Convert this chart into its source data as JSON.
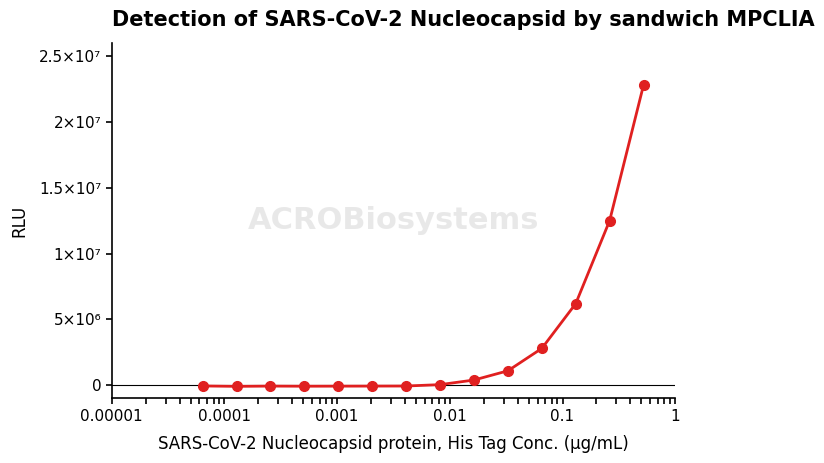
{
  "title": "Detection of SARS-CoV-2 Nucleocapsid by sandwich MPCLIA",
  "xlabel": "SARS-CoV-2 Nucleocapsid protein, His Tag Conc. (μg/mL)",
  "ylabel": "RLU",
  "x_data": [
    6.4e-05,
    0.000128,
    0.000256,
    0.000512,
    0.001024,
    0.002048,
    0.004096,
    0.008192,
    0.016384,
    0.032768,
    0.065536,
    0.131072,
    0.262144,
    0.524288
  ],
  "y_data": [
    -50000,
    -80000,
    -60000,
    -70000,
    -65000,
    -60000,
    -55000,
    50000,
    400000,
    1100000,
    2800000,
    6200000,
    12500000,
    22800000
  ],
  "line_color": "#e02020",
  "marker_color": "#e02020",
  "marker_size": 7,
  "line_width": 2,
  "xlim_log": [
    -5,
    0
  ],
  "ylim": [
    -1000000,
    26000000
  ],
  "yticks": [
    0,
    5000000,
    10000000,
    15000000,
    20000000,
    25000000
  ],
  "ytick_labels": [
    "0",
    "5×10⁶",
    "1×10⁷",
    "1.5×10⁷",
    "2×10⁷",
    "2.5×10⁷"
  ],
  "title_fontsize": 15,
  "axis_label_fontsize": 12,
  "tick_fontsize": 11,
  "watermark_text": "ACROBiosystems",
  "background_color": "#ffffff"
}
